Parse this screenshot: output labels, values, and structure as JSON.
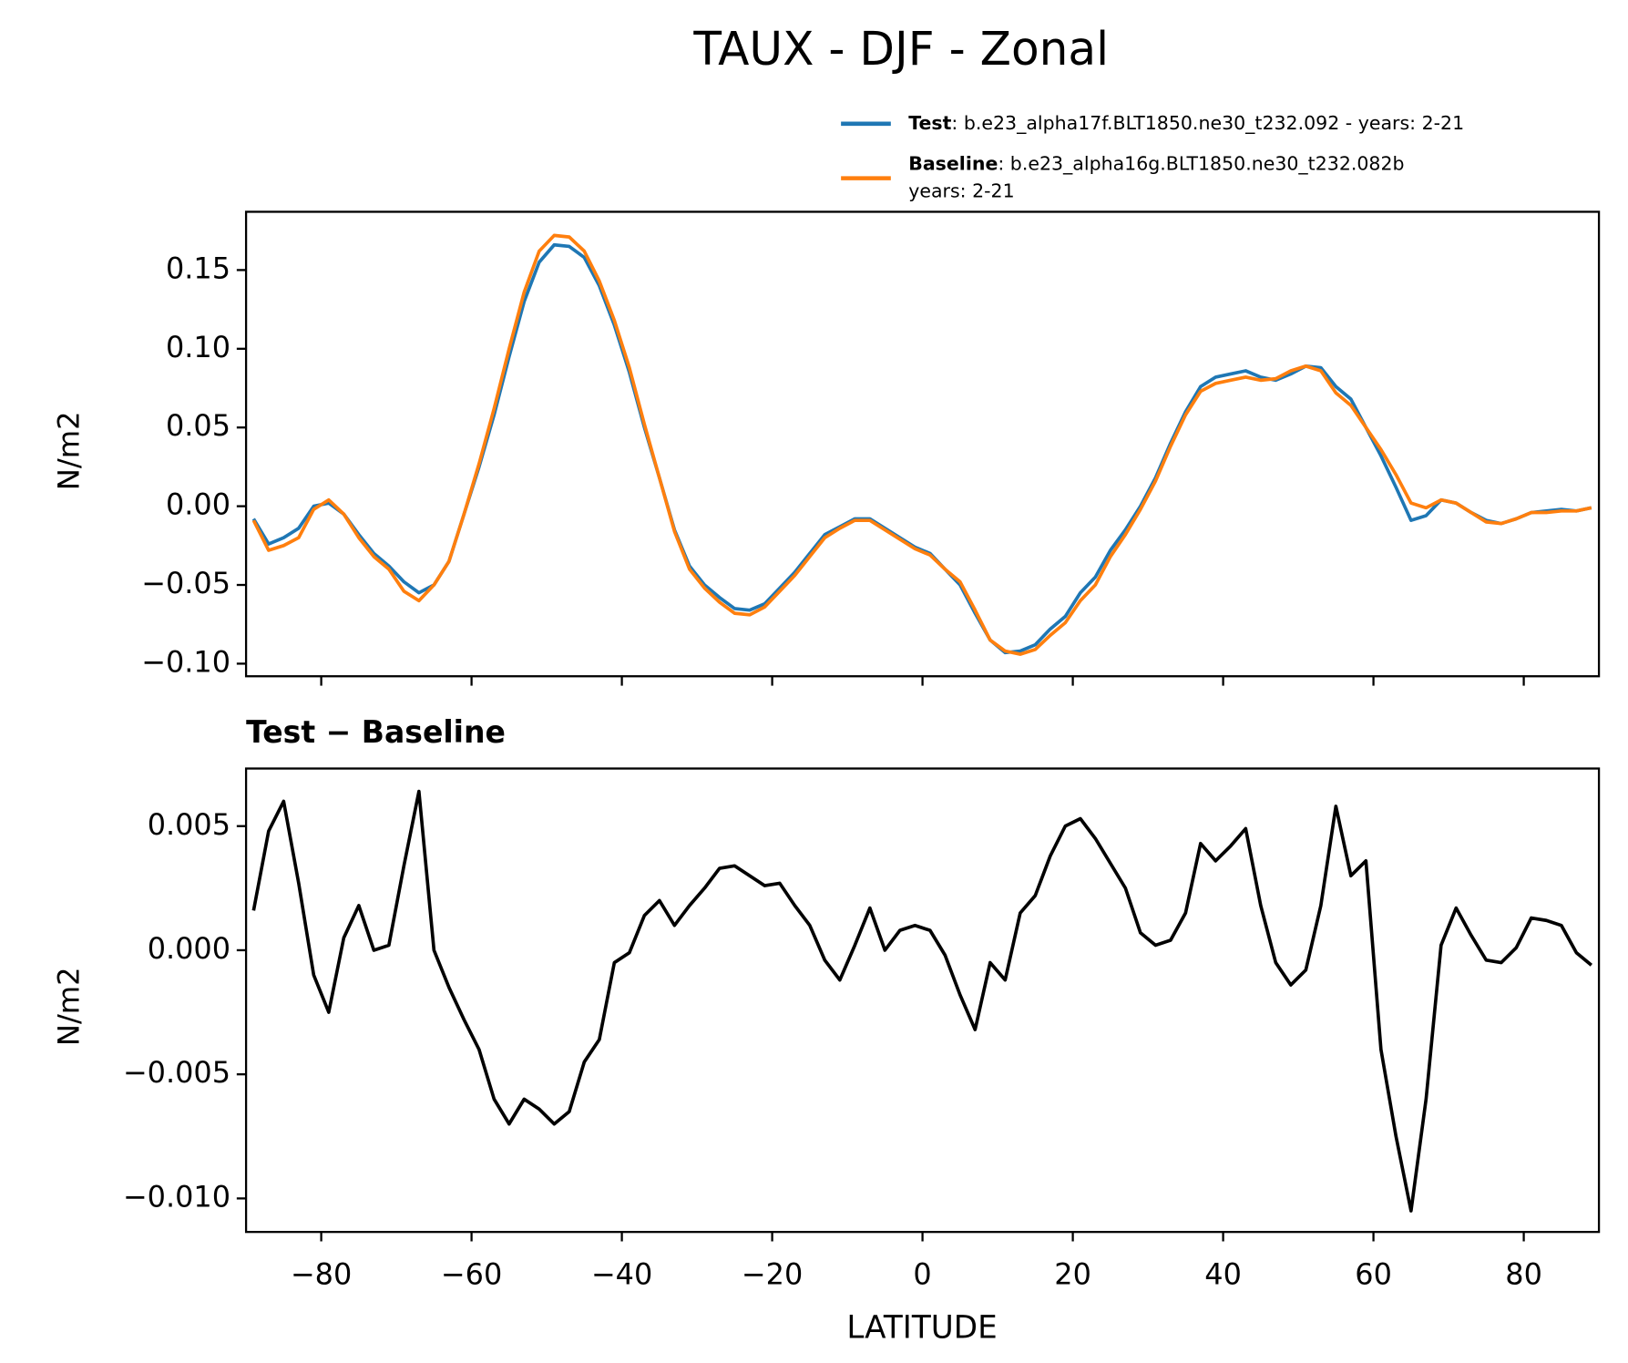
{
  "chart_data": [
    {
      "type": "line",
      "title": "TAUX - DJF - Zonal",
      "ylabel": "N/m2",
      "x": [
        -89,
        -87,
        -85,
        -83,
        -81,
        -79,
        -77,
        -75,
        -73,
        -71,
        -69,
        -67,
        -65,
        -63,
        -61,
        -59,
        -57,
        -55,
        -53,
        -51,
        -49,
        -47,
        -45,
        -43,
        -41,
        -39,
        -37,
        -35,
        -33,
        -31,
        -29,
        -27,
        -25,
        -23,
        -21,
        -19,
        -17,
        -15,
        -13,
        -11,
        -9,
        -7,
        -5,
        -3,
        -1,
        1,
        3,
        5,
        7,
        9,
        11,
        13,
        15,
        17,
        19,
        21,
        23,
        25,
        27,
        29,
        31,
        33,
        35,
        37,
        39,
        41,
        43,
        45,
        47,
        49,
        51,
        53,
        55,
        57,
        59,
        61,
        63,
        65,
        67,
        69,
        71,
        73,
        75,
        77,
        79,
        81,
        83,
        85,
        87,
        89
      ],
      "series": [
        {
          "name": "Test",
          "description": [
            ": b.e23_alpha17f.BLT1850.ne30_t232.092 - years: 2-21"
          ],
          "color": "#1f77b4",
          "values": [
            -0.008,
            -0.024,
            -0.02,
            -0.014,
            0.0,
            0.002,
            -0.005,
            -0.018,
            -0.03,
            -0.038,
            -0.048,
            -0.055,
            -0.05,
            -0.035,
            -0.005,
            0.025,
            0.058,
            0.095,
            0.13,
            0.155,
            0.166,
            0.165,
            0.158,
            0.14,
            0.115,
            0.085,
            0.05,
            0.018,
            -0.015,
            -0.038,
            -0.05,
            -0.058,
            -0.065,
            -0.066,
            -0.062,
            -0.052,
            -0.042,
            -0.03,
            -0.018,
            -0.013,
            -0.008,
            -0.008,
            -0.014,
            -0.02,
            -0.026,
            -0.03,
            -0.04,
            -0.05,
            -0.068,
            -0.085,
            -0.093,
            -0.092,
            -0.088,
            -0.078,
            -0.07,
            -0.055,
            -0.045,
            -0.028,
            -0.015,
            0.0,
            0.018,
            0.04,
            0.06,
            0.076,
            0.082,
            0.084,
            0.086,
            0.082,
            0.08,
            0.084,
            0.089,
            0.088,
            0.076,
            0.068,
            0.05,
            0.032,
            0.012,
            -0.009,
            -0.006,
            0.004,
            0.002,
            -0.004,
            -0.009,
            -0.011,
            -0.008,
            -0.004,
            -0.003,
            -0.002,
            -0.003,
            -0.001
          ]
        },
        {
          "name": "Baseline",
          "description": [
            ": b.e23_alpha16g.BLT1850.ne30_t232.082b",
            "years: 2-21"
          ],
          "color": "#ff7f0e",
          "values": [
            -0.009,
            -0.028,
            -0.025,
            -0.02,
            -0.002,
            0.004,
            -0.005,
            -0.02,
            -0.032,
            -0.04,
            -0.054,
            -0.06,
            -0.05,
            -0.035,
            -0.005,
            0.027,
            0.062,
            0.1,
            0.136,
            0.162,
            0.172,
            0.171,
            0.162,
            0.143,
            0.118,
            0.088,
            0.052,
            0.018,
            -0.016,
            -0.04,
            -0.052,
            -0.061,
            -0.068,
            -0.069,
            -0.064,
            -0.054,
            -0.044,
            -0.032,
            -0.02,
            -0.014,
            -0.009,
            -0.009,
            -0.015,
            -0.021,
            -0.027,
            -0.031,
            -0.04,
            -0.048,
            -0.066,
            -0.085,
            -0.092,
            -0.094,
            -0.091,
            -0.082,
            -0.074,
            -0.06,
            -0.05,
            -0.032,
            -0.018,
            -0.002,
            0.016,
            0.038,
            0.058,
            0.073,
            0.078,
            0.08,
            0.082,
            0.08,
            0.081,
            0.086,
            0.089,
            0.086,
            0.072,
            0.064,
            0.05,
            0.036,
            0.02,
            0.002,
            -0.001,
            0.004,
            0.002,
            -0.004,
            -0.01,
            -0.011,
            -0.008,
            -0.004,
            -0.004,
            -0.003,
            -0.003,
            -0.001
          ]
        }
      ],
      "xlim": [
        -90,
        90
      ],
      "xticks": [
        -80,
        -60,
        -40,
        -20,
        0,
        20,
        40,
        60,
        80
      ],
      "ylim": [
        -0.108,
        0.187
      ],
      "yticks": [
        {
          "value": -0.1,
          "label": "−0.10"
        },
        {
          "value": -0.05,
          "label": "−0.05"
        },
        {
          "value": 0,
          "label": "0.00"
        },
        0.05,
        {
          "value": 0.1,
          "label": "0.10"
        },
        0.15
      ],
      "legend": "upper right"
    },
    {
      "type": "line",
      "title": "Test − Baseline",
      "ylabel": "N/m2",
      "xlabel": "LATITUDE",
      "x": [
        -89,
        -87,
        -85,
        -83,
        -81,
        -79,
        -77,
        -75,
        -73,
        -71,
        -69,
        -67,
        -65,
        -63,
        -61,
        -59,
        -57,
        -55,
        -53,
        -51,
        -49,
        -47,
        -45,
        -43,
        -41,
        -39,
        -37,
        -35,
        -33,
        -31,
        -29,
        -27,
        -25,
        -23,
        -21,
        -19,
        -17,
        -15,
        -13,
        -11,
        -9,
        -7,
        -5,
        -3,
        -1,
        1,
        3,
        5,
        7,
        9,
        11,
        13,
        15,
        17,
        19,
        21,
        23,
        25,
        27,
        29,
        31,
        33,
        35,
        37,
        39,
        41,
        43,
        45,
        47,
        49,
        51,
        53,
        55,
        57,
        59,
        61,
        63,
        65,
        67,
        69,
        71,
        73,
        75,
        77,
        79,
        81,
        83,
        85,
        87,
        89
      ],
      "color": "#000000",
      "values": [
        0.0016,
        0.0048,
        0.006,
        0.0027,
        -0.001,
        -0.0025,
        0.0005,
        0.0018,
        0.0,
        0.0002,
        0.0034,
        0.0064,
        0.0,
        -0.0015,
        -0.0028,
        -0.004,
        -0.006,
        -0.007,
        -0.006,
        -0.0064,
        -0.007,
        -0.0065,
        -0.0045,
        -0.0036,
        -0.0005,
        -0.0001,
        0.0014,
        0.002,
        0.001,
        0.0018,
        0.0025,
        0.0033,
        0.0034,
        0.003,
        0.0026,
        0.0027,
        0.0018,
        0.001,
        -0.0004,
        -0.0012,
        0.0002,
        0.0017,
        0.0,
        0.0008,
        0.001,
        0.0008,
        -0.0002,
        -0.0018,
        -0.0032,
        -0.0005,
        -0.0012,
        0.0015,
        0.0022,
        0.0038,
        0.005,
        0.0053,
        0.0045,
        0.0035,
        0.0025,
        0.0007,
        0.0002,
        0.0004,
        0.0015,
        0.0043,
        0.0036,
        0.0042,
        0.0049,
        0.0018,
        -0.0005,
        -0.0014,
        -0.0008,
        0.0018,
        0.0058,
        0.003,
        0.0036,
        -0.004,
        -0.0075,
        -0.0105,
        -0.006,
        0.0002,
        0.0017,
        0.0006,
        -0.0004,
        -0.0005,
        0.0001,
        0.0013,
        0.0012,
        0.001,
        -0.0001,
        -0.0006
      ],
      "xlim": [
        -90,
        90
      ],
      "xticks": [
        {
          "value": -80,
          "label": "−80"
        },
        {
          "value": -60,
          "label": "−60"
        },
        {
          "value": -40,
          "label": "−40"
        },
        {
          "value": -20,
          "label": "−20"
        },
        0,
        20,
        40,
        60,
        80
      ],
      "ylim": [
        -0.01135,
        0.00732
      ],
      "yticks": [
        {
          "value": -0.01,
          "label": "−0.010"
        },
        {
          "value": -0.005,
          "label": "−0.005"
        },
        {
          "value": 0,
          "label": "0.000"
        },
        0.005
      ]
    }
  ]
}
